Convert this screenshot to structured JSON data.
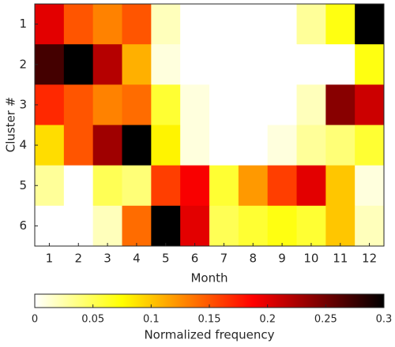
{
  "chart_data": {
    "type": "heatmap",
    "xlabel": "Month",
    "ylabel": "Cluster #",
    "x": [
      "1",
      "2",
      "3",
      "4",
      "5",
      "6",
      "7",
      "8",
      "9",
      "10",
      "11",
      "12"
    ],
    "y": [
      "1",
      "2",
      "3",
      "4",
      "5",
      "6"
    ],
    "values": [
      [
        0.2,
        0.15,
        0.13,
        0.15,
        0.02,
        0,
        0,
        0,
        0,
        0.03,
        0.07,
        0.3
      ],
      [
        0.27,
        0.3,
        0.22,
        0.11,
        0.01,
        0,
        0,
        0,
        0,
        0,
        0,
        0.07
      ],
      [
        0.17,
        0.15,
        0.13,
        0.14,
        0.06,
        0.01,
        0,
        0,
        0,
        0.02,
        0.24,
        0.21
      ],
      [
        0.09,
        0.15,
        0.23,
        0.3,
        0.08,
        0.01,
        0,
        0,
        0.01,
        0.03,
        0.04,
        0.06
      ],
      [
        0.03,
        0,
        0.05,
        0.04,
        0.16,
        0.19,
        0.06,
        0.12,
        0.16,
        0.2,
        0.1,
        0.01
      ],
      [
        0,
        0,
        0.02,
        0.14,
        0.3,
        0.2,
        0.05,
        0.06,
        0.07,
        0.06,
        0.1,
        0.02
      ]
    ],
    "colormap": "hot_r",
    "colorbar": {
      "label": "Normalized frequency",
      "clim": [
        0,
        0.3
      ],
      "ticks": [
        0,
        0.05,
        0.1,
        0.15,
        0.2,
        0.25,
        0.3
      ]
    }
  }
}
